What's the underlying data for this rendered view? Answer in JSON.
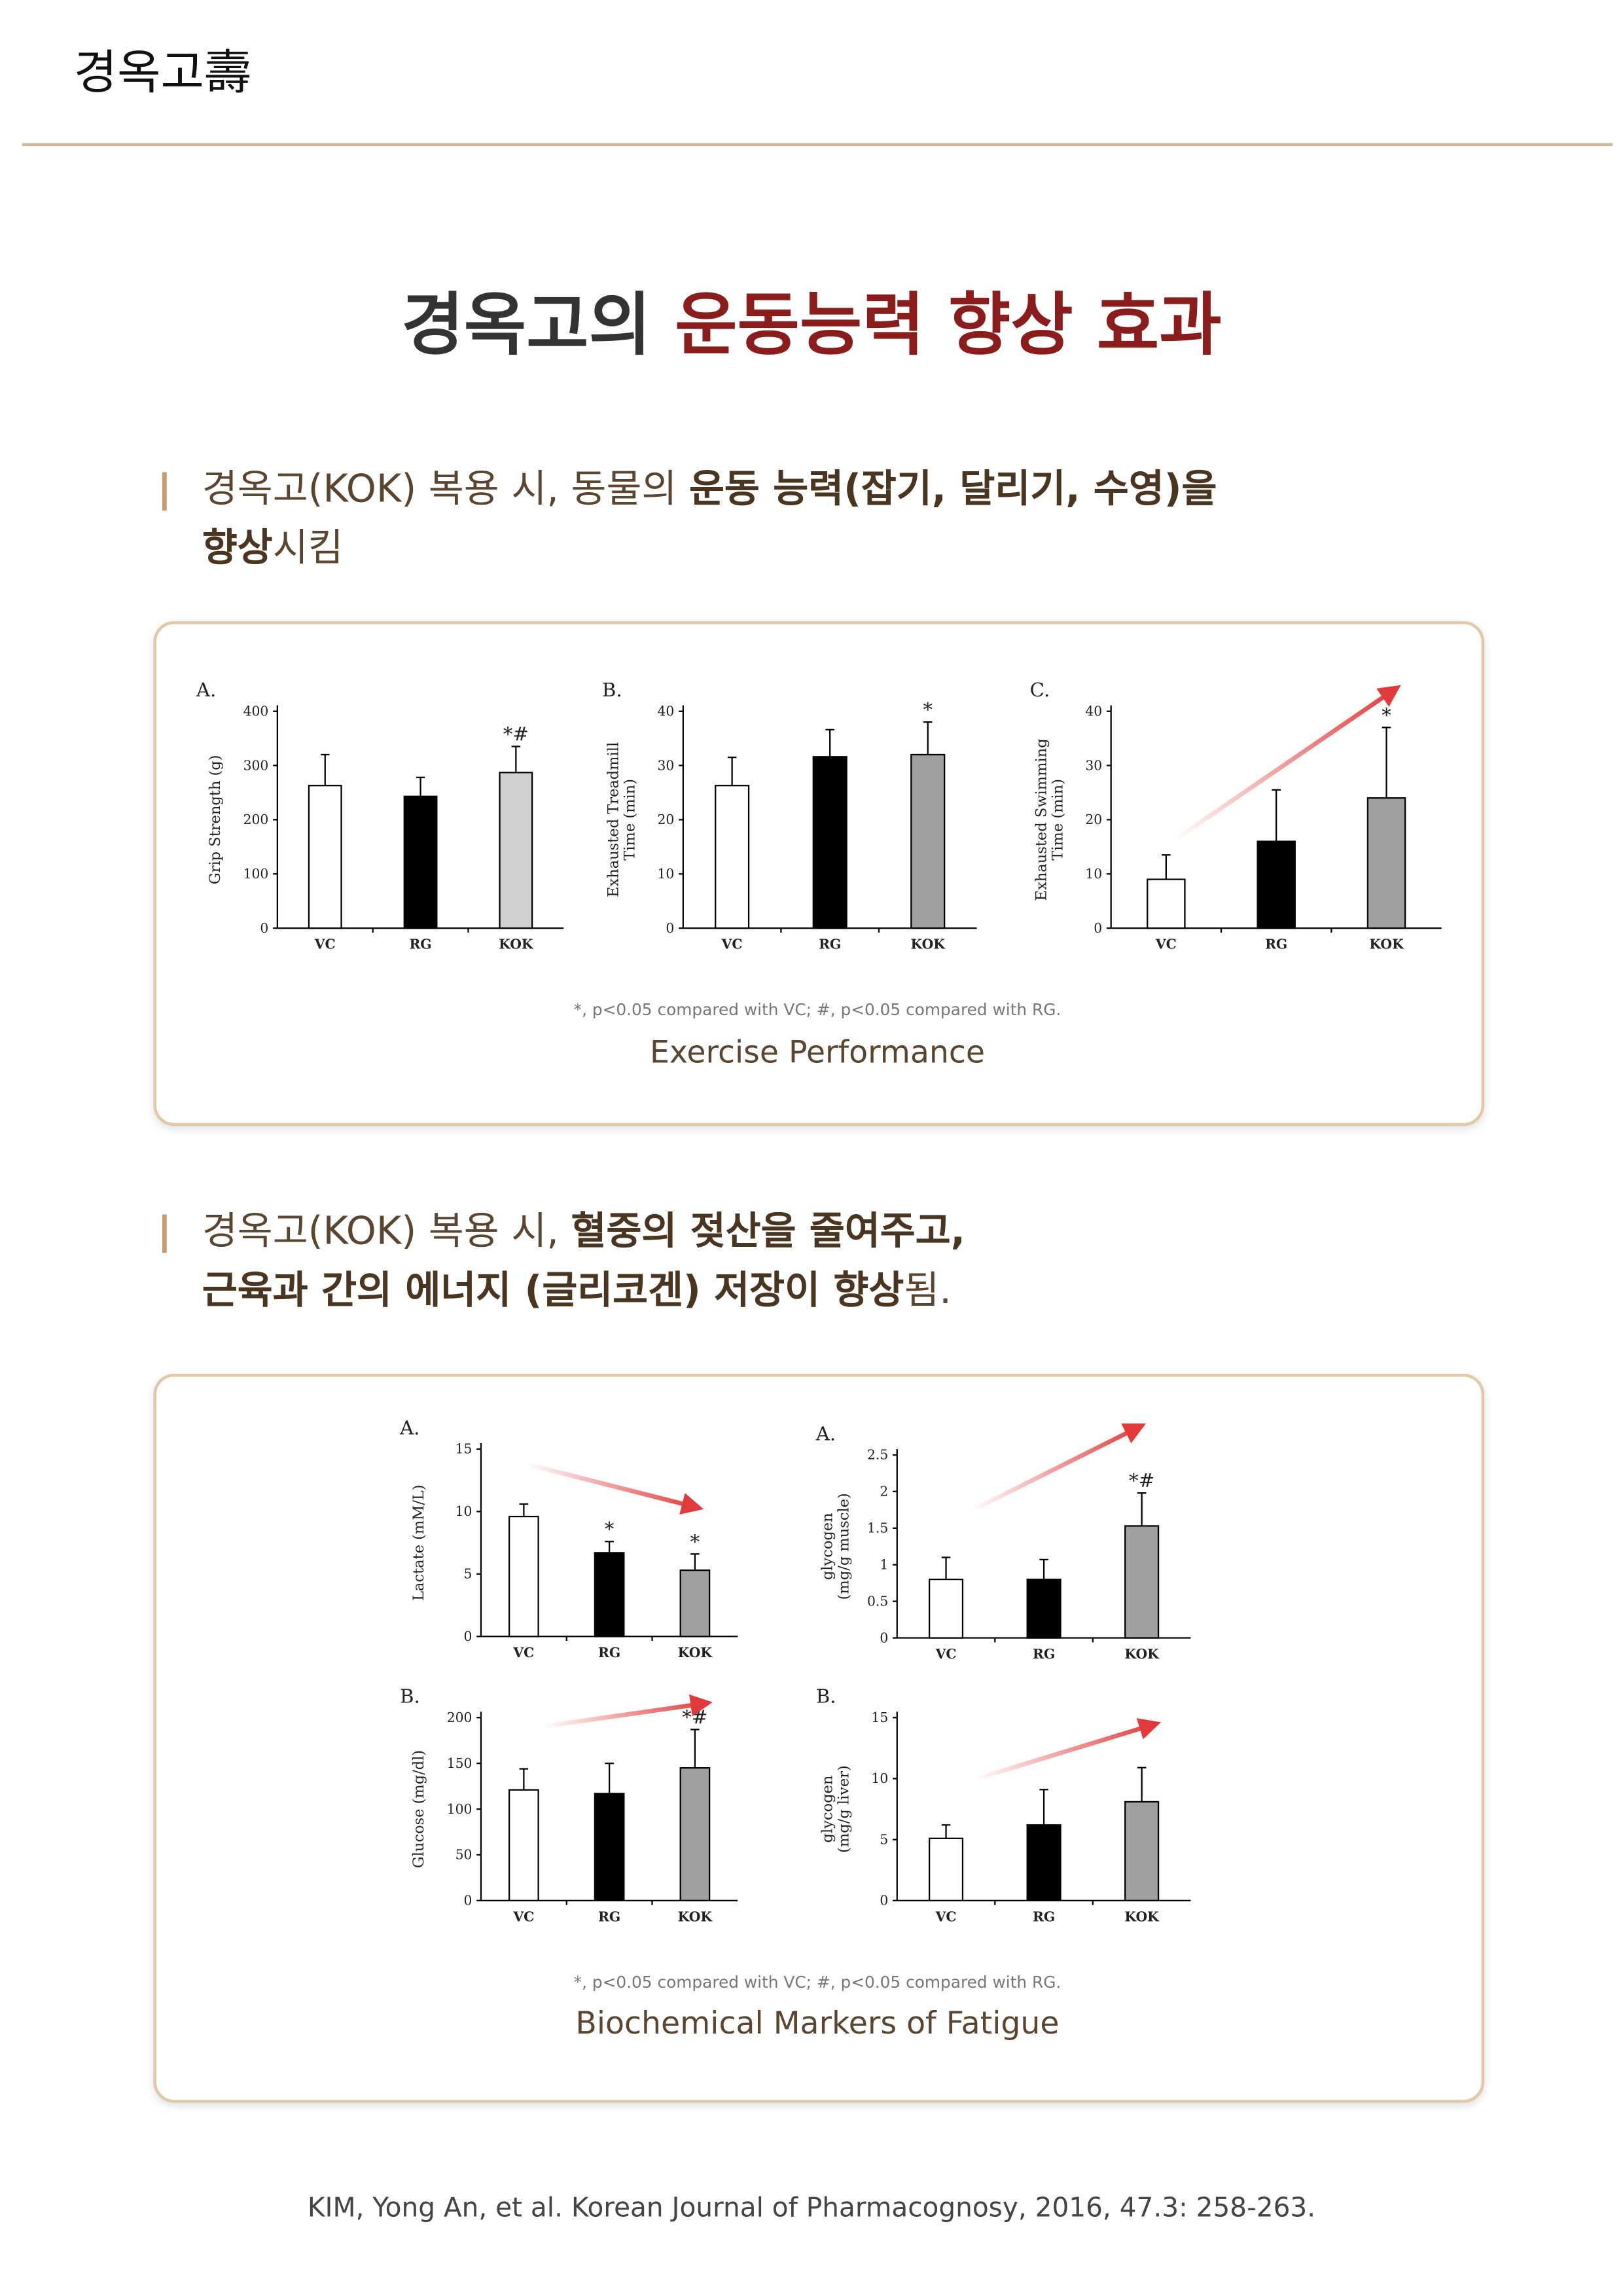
{
  "header": {
    "brand": "경옥고壽"
  },
  "title": [
    "경옥고의 ",
    "운동능력 향상 효과"
  ],
  "sections": [
    {
      "headline": [
        [
          "경옥고(KOK) 복용 시,  동물의 ",
          "운동 능력(잡기, 달리기, 수영)을"
        ],
        [
          "향상",
          "시킴"
        ]
      ],
      "footnote": "*, p<0.05 compared with VC; #, p<0.05 compared with RG.",
      "caption": "Exercise Performance"
    },
    {
      "headline": [
        [
          "경옥고(KOK) 복용 시, ",
          "혈중의 젖산을 줄여주고,"
        ],
        [
          "근육과 간의 에너지 (글리코겐) 저장이 향상",
          "됨."
        ]
      ],
      "footnote": "*, p<0.05 compared with VC; #, p<0.05 compared with RG.",
      "caption": "Biochemical Markers of Fatigue"
    }
  ],
  "chart_data": [
    {
      "type": "bar",
      "panel": "A.",
      "ylabel": [
        "Grip Strength (g)"
      ],
      "categories": [
        "VC",
        "RG",
        "KOK"
      ],
      "values": [
        263,
        243,
        287
      ],
      "errors": [
        57,
        35,
        48
      ],
      "annotations": [
        null,
        null,
        "*#"
      ],
      "colors": [
        "#ffffff",
        "#000000",
        "#d0d0d0"
      ],
      "ylim": [
        0,
        400
      ],
      "yticks": [
        0,
        100,
        200,
        300,
        400
      ]
    },
    {
      "type": "bar",
      "panel": "B.",
      "ylabel": [
        "Exhausted Treadmill",
        "Time (min)"
      ],
      "categories": [
        "VC",
        "RG",
        "KOK"
      ],
      "values": [
        26.3,
        31.6,
        32
      ],
      "errors": [
        5.2,
        5,
        6
      ],
      "annotations": [
        null,
        null,
        "*"
      ],
      "colors": [
        "#ffffff",
        "#000000",
        "#a0a0a0"
      ],
      "ylim": [
        0,
        40
      ],
      "yticks": [
        0,
        10,
        20,
        30,
        40
      ]
    },
    {
      "type": "bar",
      "panel": "C.",
      "ylabel": [
        "Exhausted Swimming",
        "Time (min)"
      ],
      "categories": [
        "VC",
        "RG",
        "KOK"
      ],
      "values": [
        9,
        16,
        24
      ],
      "errors": [
        4.5,
        9.5,
        13
      ],
      "annotations": [
        null,
        null,
        "*"
      ],
      "colors": [
        "#ffffff",
        "#000000",
        "#a0a0a0"
      ],
      "ylim": [
        0,
        40
      ],
      "yticks": [
        0,
        10,
        20,
        30,
        40
      ]
    },
    {
      "type": "bar",
      "panel": "A.",
      "ylabel": [
        "Lactate (mM/L)"
      ],
      "categories": [
        "VC",
        "RG",
        "KOK"
      ],
      "values": [
        9.6,
        6.7,
        5.3
      ],
      "errors": [
        1,
        0.9,
        1.3
      ],
      "annotations": [
        null,
        "*",
        "*"
      ],
      "colors": [
        "#ffffff",
        "#000000",
        "#a0a0a0"
      ],
      "ylim": [
        0,
        15
      ],
      "yticks": [
        0,
        5,
        10,
        15
      ]
    },
    {
      "type": "bar",
      "panel": "A.",
      "ylabel": [
        "glycogen",
        "(mg/g muscle)"
      ],
      "categories": [
        "VC",
        "RG",
        "KOK"
      ],
      "values": [
        0.8,
        0.8,
        1.53
      ],
      "errors": [
        0.3,
        0.27,
        0.45
      ],
      "annotations": [
        null,
        null,
        "*#"
      ],
      "colors": [
        "#ffffff",
        "#000000",
        "#a0a0a0"
      ],
      "ylim": [
        0,
        2.5
      ],
      "yticks": [
        0,
        0.5,
        1,
        1.5,
        2,
        2.5
      ]
    },
    {
      "type": "bar",
      "panel": "B.",
      "ylabel": [
        "Glucose (mg/dl)"
      ],
      "categories": [
        "VC",
        "RG",
        "KOK"
      ],
      "values": [
        121,
        117,
        145
      ],
      "errors": [
        23,
        33,
        42
      ],
      "annotations": [
        null,
        null,
        "*#"
      ],
      "colors": [
        "#ffffff",
        "#000000",
        "#a0a0a0"
      ],
      "ylim": [
        0,
        200
      ],
      "yticks": [
        0,
        50,
        100,
        150,
        200
      ]
    },
    {
      "type": "bar",
      "panel": "B.",
      "ylabel": [
        "glycogen",
        "(mg/g liver)"
      ],
      "categories": [
        "VC",
        "RG",
        "KOK"
      ],
      "values": [
        5.1,
        6.2,
        8.1
      ],
      "errors": [
        1.1,
        2.9,
        2.8
      ],
      "annotations": [
        null,
        null,
        null
      ],
      "colors": [
        "#ffffff",
        "#000000",
        "#a0a0a0"
      ],
      "ylim": [
        0,
        15
      ],
      "yticks": [
        0,
        5,
        10,
        15
      ]
    }
  ],
  "citation": "KIM, Yong An, et al. Korean Journal of Pharmacognosy, 2016, 47.3: 258-263."
}
